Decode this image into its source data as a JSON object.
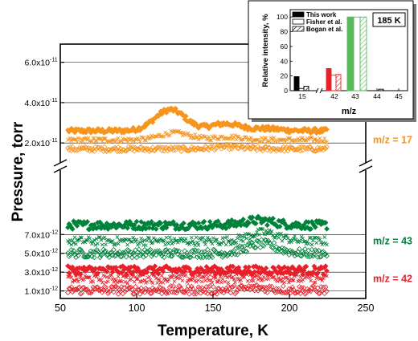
{
  "chart_data": [
    {
      "type": "scatter",
      "xlabel": "Temperature, K",
      "ylabel": "Pressure, torr",
      "xlim": [
        50,
        250
      ],
      "x_ticks": [
        "50",
        "100",
        "150",
        "200",
        "250"
      ],
      "y_ticks": [
        {
          "label": "1.0x10",
          "exp": "-12",
          "value": 1e-12,
          "segment": "lower"
        },
        {
          "label": "3.0x10",
          "exp": "-12",
          "value": 3e-12,
          "segment": "lower"
        },
        {
          "label": "5.0x10",
          "exp": "-12",
          "value": 5e-12,
          "segment": "lower"
        },
        {
          "label": "7.0x10",
          "exp": "-12",
          "value": 7e-12,
          "segment": "lower"
        },
        {
          "label": "2.0x10",
          "exp": "-11",
          "value": 2e-11,
          "segment": "upper"
        },
        {
          "label": "4.0x10",
          "exp": "-11",
          "value": 4e-11,
          "segment": "upper"
        },
        {
          "label": "6.0x10",
          "exp": "-11",
          "value": 6e-11,
          "segment": "upper"
        }
      ],
      "axis_break": true,
      "grid": "horizontal lines at tick values",
      "temperature_range": [
        55,
        225
      ],
      "groups": [
        {
          "label": "m/z = 17",
          "color": "#f7941d",
          "segment": "upper",
          "series": [
            {
              "marker": "diamond-filled",
              "base": 2.6e-11,
              "peaks": [
                [
                  122,
                  1.05e-11
                ],
                [
                  158,
                  3.5e-12
                ],
                [
                  185,
                  1e-12
                ]
              ]
            },
            {
              "marker": "x",
              "base": 2.15e-11,
              "peaks": [
                [
                  125,
                  3.5e-12
                ],
                [
                  160,
                  1.5e-12
                ]
              ]
            },
            {
              "marker": "diamond-open",
              "base": 1.7e-11,
              "peaks": [
                [
                  160,
                  1e-12
                ]
              ]
            }
          ]
        },
        {
          "label": "m/z = 43",
          "color": "#00823b",
          "segment": "lower",
          "series": [
            {
              "marker": "diamond-filled",
              "base": 8e-12,
              "peaks": [
                [
                  180,
                  5e-13
                ]
              ]
            },
            {
              "marker": "x",
              "base": 6.3e-12,
              "peaks": [
                [
                  183,
                  9e-13
                ]
              ]
            },
            {
              "marker": "diamond-open",
              "base": 5e-12,
              "peaks": [
                [
                  182,
                  1e-12
                ]
              ]
            }
          ]
        },
        {
          "label": "m/z = 42",
          "color": "#e8202a",
          "segment": "lower",
          "series": [
            {
              "marker": "diamond-filled",
              "base": 3.2e-12,
              "peaks": []
            },
            {
              "marker": "x",
              "base": 2.3e-12,
              "peaks": [
                [
                  180,
                  2e-13
                ]
              ]
            },
            {
              "marker": "diamond-open",
              "base": 1.1e-12,
              "peaks": [
                [
                  180,
                  2e-13
                ]
              ]
            }
          ]
        }
      ]
    },
    {
      "type": "bar",
      "annotation": "185 K",
      "xlabel": "m/z",
      "ylabel": "Relative intensity, %",
      "ylim": [
        0,
        110
      ],
      "y_ticks": [
        0,
        20,
        40,
        60,
        80,
        100
      ],
      "categories": [
        "15",
        "42",
        "43",
        "44",
        "45"
      ],
      "axis_break_after": "15",
      "legend": "top-left",
      "series": [
        {
          "name": "This work",
          "pattern": "solid",
          "values": [
            19,
            30,
            100,
            0,
            0
          ],
          "colors": [
            "#000000",
            "#e8202a",
            "#5cb85c",
            "#000000",
            "#000000"
          ]
        },
        {
          "name": "Fisher et al.",
          "pattern": "open",
          "values": [
            3,
            21,
            100,
            0,
            0
          ]
        },
        {
          "name": "Bogan et al.",
          "pattern": "hatched",
          "values": [
            6,
            22,
            100,
            2,
            0
          ]
        }
      ]
    }
  ]
}
